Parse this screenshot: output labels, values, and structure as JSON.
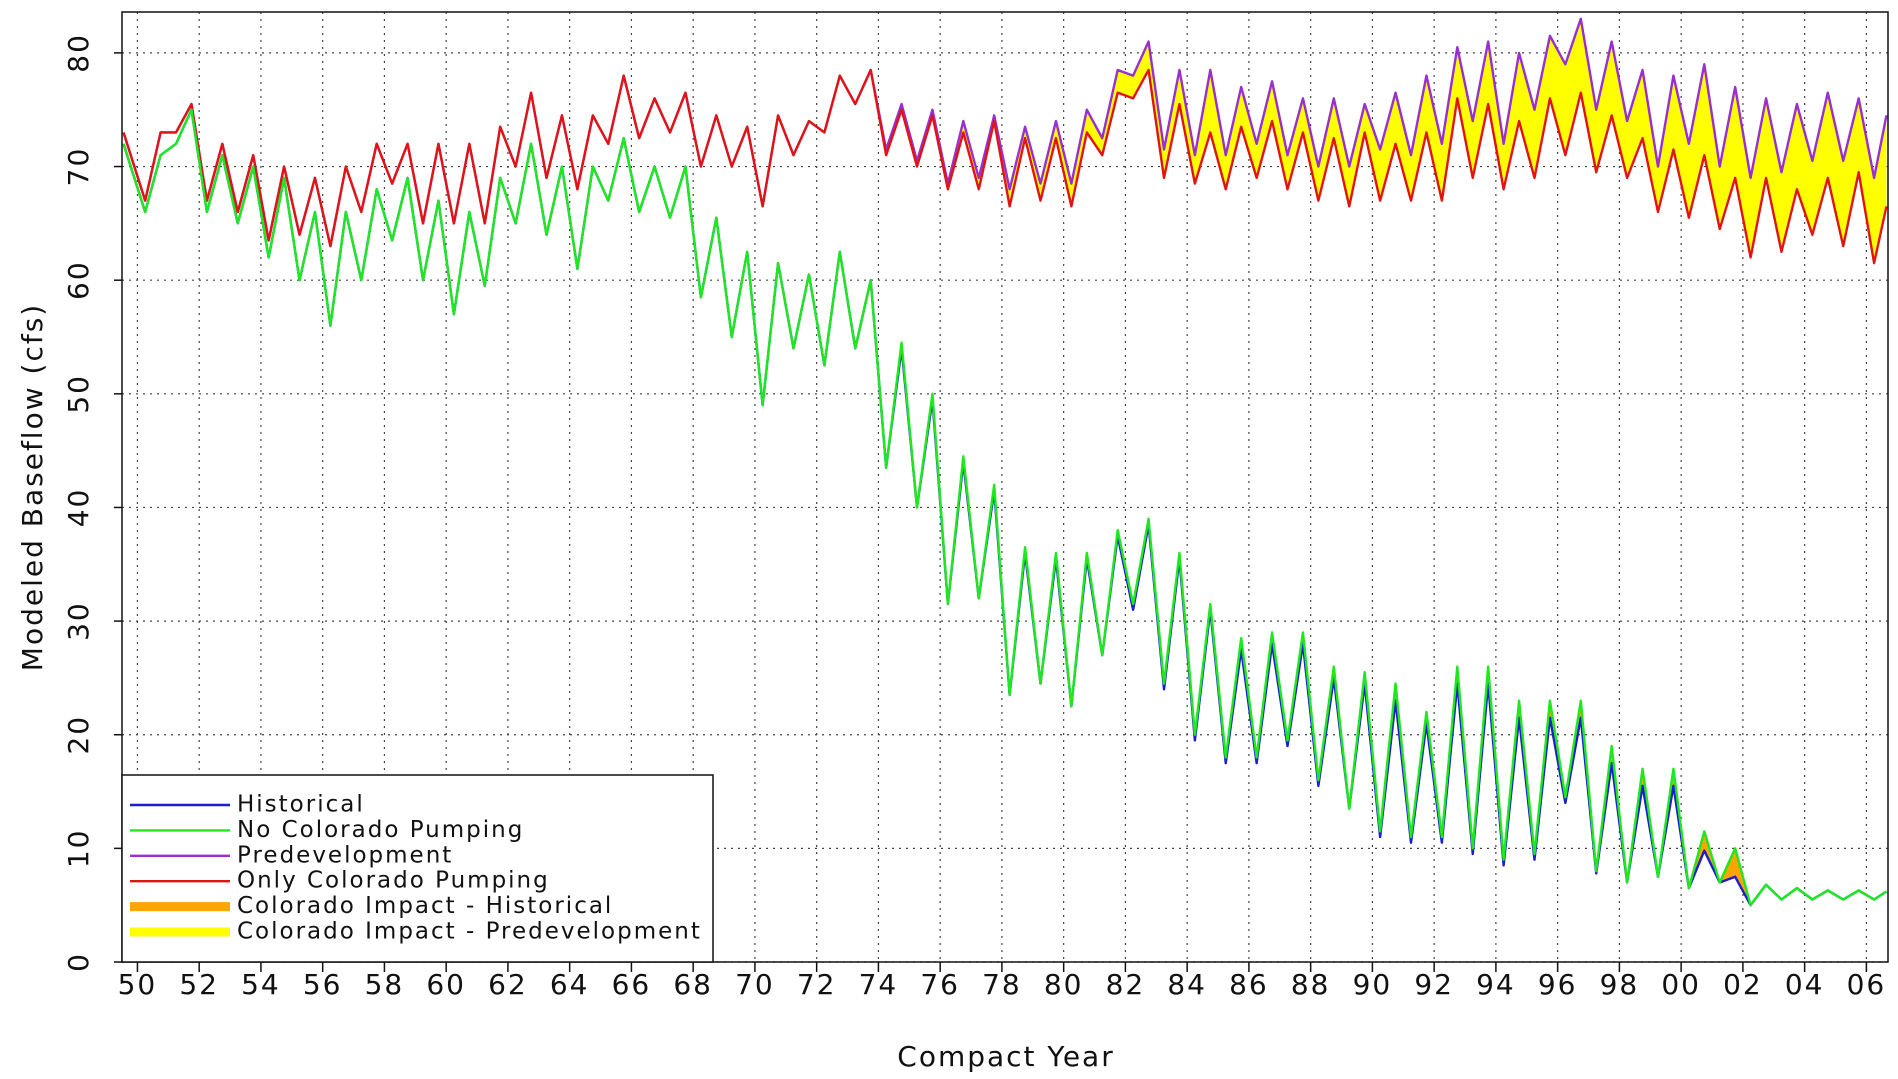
{
  "chart_data": {
    "type": "line",
    "xlabel": "Compact Year",
    "ylabel": "Modeled Baseflow (cfs)",
    "xlim": [
      1949.5,
      2006.7
    ],
    "ylim": [
      0,
      83.6
    ],
    "yticks": [
      0,
      10,
      20,
      30,
      40,
      50,
      60,
      70,
      80
    ],
    "xticks": [
      {
        "value": 1950,
        "label": "50"
      },
      {
        "value": 1952,
        "label": "52"
      },
      {
        "value": 1954,
        "label": "54"
      },
      {
        "value": 1956,
        "label": "56"
      },
      {
        "value": 1958,
        "label": "58"
      },
      {
        "value": 1960,
        "label": "60"
      },
      {
        "value": 1962,
        "label": "62"
      },
      {
        "value": 1964,
        "label": "64"
      },
      {
        "value": 1966,
        "label": "66"
      },
      {
        "value": 1968,
        "label": "68"
      },
      {
        "value": 1970,
        "label": "70"
      },
      {
        "value": 1972,
        "label": "72"
      },
      {
        "value": 1974,
        "label": "74"
      },
      {
        "value": 1976,
        "label": "76"
      },
      {
        "value": 1978,
        "label": "78"
      },
      {
        "value": 1980,
        "label": "80"
      },
      {
        "value": 1982,
        "label": "82"
      },
      {
        "value": 1984,
        "label": "84"
      },
      {
        "value": 1986,
        "label": "86"
      },
      {
        "value": 1988,
        "label": "88"
      },
      {
        "value": 1990,
        "label": "90"
      },
      {
        "value": 1992,
        "label": "92"
      },
      {
        "value": 1994,
        "label": "94"
      },
      {
        "value": 1996,
        "label": "96"
      },
      {
        "value": 1998,
        "label": "98"
      },
      {
        "value": 2000,
        "label": "00"
      },
      {
        "value": 2002,
        "label": "02"
      },
      {
        "value": 2004,
        "label": "04"
      },
      {
        "value": 2006,
        "label": "06"
      }
    ],
    "grid": true,
    "legend": "lower left",
    "x": [
      1949.55,
      1950.25,
      1950.75,
      1951.25,
      1951.75,
      1952.25,
      1952.75,
      1953.25,
      1953.75,
      1954.25,
      1954.75,
      1955.25,
      1955.75,
      1956.25,
      1956.75,
      1957.25,
      1957.75,
      1958.25,
      1958.75,
      1959.25,
      1959.75,
      1960.25,
      1960.75,
      1961.25,
      1961.75,
      1962.25,
      1962.75,
      1963.25,
      1963.75,
      1964.25,
      1964.75,
      1965.25,
      1965.75,
      1966.25,
      1966.75,
      1967.25,
      1967.75,
      1968.25,
      1968.75,
      1969.25,
      1969.75,
      1970.25,
      1970.75,
      1971.25,
      1971.75,
      1972.25,
      1972.75,
      1973.25,
      1973.75,
      1974.25,
      1974.75,
      1975.25,
      1975.75,
      1976.25,
      1976.75,
      1977.25,
      1977.75,
      1978.25,
      1978.75,
      1979.25,
      1979.75,
      1980.25,
      1980.75,
      1981.25,
      1981.75,
      1982.25,
      1982.75,
      1983.25,
      1983.75,
      1984.25,
      1984.75,
      1985.25,
      1985.75,
      1986.25,
      1986.75,
      1987.25,
      1987.75,
      1988.25,
      1988.75,
      1989.25,
      1989.75,
      1990.25,
      1990.75,
      1991.25,
      1991.75,
      1992.25,
      1992.75,
      1993.25,
      1993.75,
      1994.25,
      1994.75,
      1995.25,
      1995.75,
      1996.25,
      1996.75,
      1997.25,
      1997.75,
      1998.25,
      1998.75,
      1999.25,
      1999.75,
      2000.25,
      2000.75,
      2001.25,
      2001.75,
      2002.25,
      2002.75,
      2003.25,
      2003.75,
      2004.25,
      2004.75,
      2005.25,
      2005.75,
      2006.25,
      2006.65
    ],
    "series": [
      {
        "name": "Historical",
        "color": "#1c1cd0",
        "values": [
          72,
          66,
          71,
          72,
          75,
          66,
          71,
          65,
          70,
          62,
          69,
          60,
          66,
          56,
          66,
          60,
          68,
          63.5,
          69,
          60,
          67,
          57,
          66,
          59.5,
          69,
          65,
          72,
          64,
          70,
          61,
          70,
          67,
          72.5,
          66,
          70,
          65.5,
          70,
          58.5,
          65.5,
          55,
          62.5,
          49,
          61.5,
          54,
          60.5,
          52.5,
          62.5,
          54,
          60,
          43.5,
          54,
          40,
          49.5,
          31.5,
          44,
          32,
          41.5,
          23.5,
          36,
          24.5,
          35.5,
          22.5,
          35.5,
          27,
          37.5,
          31,
          38.5,
          24,
          35.5,
          19.5,
          31,
          17.5,
          27.5,
          17.5,
          28,
          19,
          28,
          15.5,
          25,
          13.5,
          24.5,
          11,
          23,
          10.5,
          21,
          10.5,
          24.5,
          9.5,
          24.5,
          8.5,
          21.5,
          9,
          21.5,
          14,
          21.5,
          7.8,
          17.5,
          7,
          15.5,
          7.5,
          15.5,
          6.5,
          9.8,
          7,
          7.5,
          5,
          6.8,
          5.5,
          6.5,
          5.5,
          6.3,
          5.5,
          6.3,
          5.5,
          6.2
        ]
      },
      {
        "name": "No Colorado Pumping",
        "color": "#1ee81e",
        "values": [
          72,
          66,
          71,
          72,
          75,
          66,
          71,
          65,
          70,
          62,
          69,
          60,
          66,
          56,
          66,
          60,
          68,
          63.5,
          69,
          60,
          67,
          57,
          66,
          59.5,
          69,
          65,
          72,
          64,
          70,
          61,
          70,
          67,
          72.5,
          66,
          70,
          65.5,
          70,
          58.5,
          65.5,
          55,
          62.5,
          49,
          61.5,
          54,
          60.5,
          52.5,
          62.5,
          54,
          60,
          43.5,
          54.5,
          40,
          50,
          31.5,
          44.5,
          32,
          42,
          23.5,
          36.5,
          24.5,
          36,
          22.5,
          36,
          27,
          38,
          31.5,
          39,
          24.5,
          36,
          20,
          31.5,
          18,
          28.5,
          18,
          29,
          19.5,
          29,
          16,
          26,
          13.5,
          25.5,
          11.5,
          24.5,
          11,
          22,
          11,
          26,
          10,
          26,
          9,
          23,
          9.5,
          23,
          14.5,
          23,
          8,
          19,
          7,
          17,
          7.5,
          17,
          6.5,
          11.5,
          7,
          10,
          5,
          6.8,
          5.5,
          6.5,
          5.5,
          6.3,
          5.5,
          6.3,
          5.5,
          6.2
        ]
      },
      {
        "name": "Predevelopment",
        "color": "#9a2fd0",
        "values": [
          73,
          67,
          73,
          73,
          75.5,
          67,
          72,
          66,
          71,
          63.5,
          70,
          64,
          69,
          63,
          70,
          66,
          72,
          68.5,
          72,
          65,
          72,
          65,
          72,
          65,
          73.5,
          70,
          76.5,
          69,
          74.5,
          68,
          74.5,
          72,
          78,
          72.5,
          76,
          73,
          76.5,
          70,
          74.5,
          70,
          73.5,
          66.5,
          74.5,
          71,
          74,
          73,
          78,
          75.5,
          78.5,
          71.5,
          75.5,
          70.5,
          75,
          68.5,
          74,
          69,
          74.5,
          68,
          73.5,
          68.5,
          74,
          68.5,
          75,
          72.5,
          78.5,
          78,
          81,
          71.5,
          78.5,
          71,
          78.5,
          71,
          77,
          72,
          77.5,
          71,
          76,
          70,
          76,
          70,
          75.5,
          71.5,
          76.5,
          71,
          78,
          72,
          80.5,
          74,
          81,
          72,
          80,
          75,
          81.5,
          79,
          83,
          75,
          81,
          74,
          78.5,
          70,
          78,
          72,
          79,
          70,
          77,
          69,
          76,
          69.5,
          75.5,
          70.5,
          76.5,
          70.5,
          76,
          69,
          74.5
        ]
      },
      {
        "name": "Only Colorado Pumping",
        "color": "#e01414",
        "values": [
          73,
          67,
          73,
          73,
          75.5,
          67,
          72,
          66,
          71,
          63.5,
          70,
          64,
          69,
          63,
          70,
          66,
          72,
          68.5,
          72,
          65,
          72,
          65,
          72,
          65,
          73.5,
          70,
          76.5,
          69,
          74.5,
          68,
          74.5,
          72,
          78,
          72.5,
          76,
          73,
          76.5,
          70,
          74.5,
          70,
          73.5,
          66.5,
          74.5,
          71,
          74,
          73,
          78,
          75.5,
          78.5,
          71,
          75,
          70,
          74.5,
          68,
          73,
          68,
          74,
          66.5,
          72.5,
          67,
          72.5,
          66.5,
          73,
          71,
          76.5,
          76,
          78.5,
          69,
          75.5,
          68.5,
          73,
          68,
          73.5,
          69,
          74,
          68,
          73,
          67,
          72.5,
          66.5,
          73,
          67,
          72,
          67,
          73,
          67,
          76,
          69,
          75.5,
          68,
          74,
          69,
          76,
          71,
          76.5,
          69.5,
          74.5,
          69,
          72.5,
          66,
          71.5,
          65.5,
          71,
          64.5,
          69,
          62,
          69,
          62.5,
          68,
          64,
          69,
          63,
          69.5,
          61.5,
          66.5
        ]
      }
    ],
    "fills": [
      {
        "name": "Colorado Impact - Historical",
        "color": "#ffa500",
        "between": [
          "No Colorado Pumping",
          "Historical"
        ]
      },
      {
        "name": "Colorado Impact - Predevelopment",
        "color": "#ffff00",
        "between": [
          "Predevelopment",
          "Only Colorado Pumping"
        ]
      }
    ]
  }
}
